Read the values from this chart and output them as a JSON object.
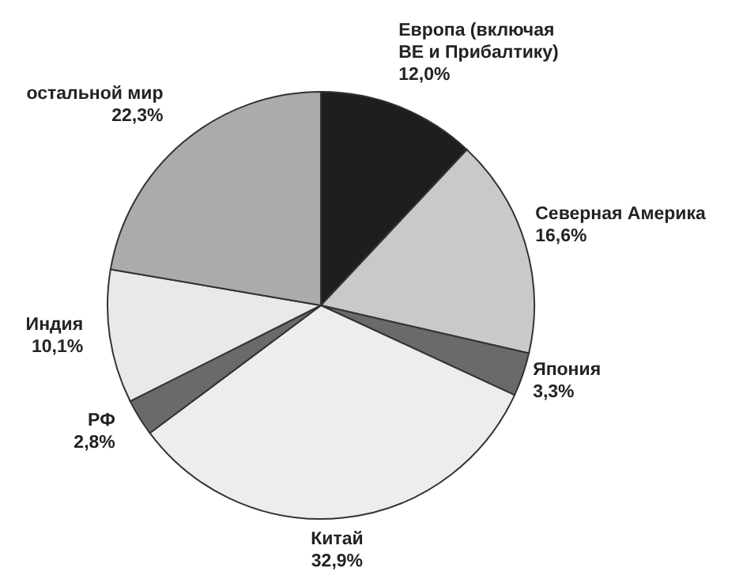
{
  "chart_data": {
    "type": "pie",
    "categories": [
      "Европа (включая ВЕ и Прибалтику)",
      "Северная Америка",
      "Япония",
      "Китай",
      "РФ",
      "Индия",
      "остальной мир"
    ],
    "values": [
      12.0,
      16.6,
      3.3,
      32.9,
      2.8,
      10.1,
      22.3
    ],
    "value_labels": [
      "12,0%",
      "16,6%",
      "3,3%",
      "32,9%",
      "2,8%",
      "10,1%",
      "22,3%"
    ],
    "colors": [
      "#1e1e1e",
      "#c9c9c9",
      "#6a6a6a",
      "#ededed",
      "#6a6a6a",
      "#e9e9e9",
      "#ababab"
    ],
    "legend": false
  }
}
